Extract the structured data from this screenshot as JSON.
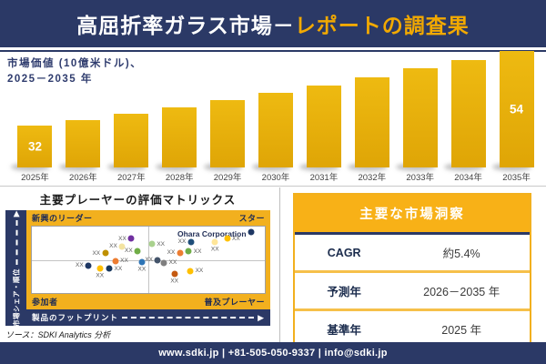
{
  "header": {
    "title_primary": "高屈折率ガラス市場－",
    "title_accent": "レポートの調査果"
  },
  "chart_header": {
    "line1": "市場価値 (10億米ドル)、",
    "line2": "2025－2035 年"
  },
  "chart_data": [
    {
      "type": "bar",
      "title": "市場価値 (10億米ドル)、2025－2035 年",
      "categories": [
        "2025年",
        "2026年",
        "2027年",
        "2028年",
        "2029年",
        "2030年",
        "2031年",
        "2032年",
        "2033年",
        "2034年",
        "2035年"
      ],
      "values": [
        32,
        33.7,
        35.6,
        37.5,
        39.5,
        41.6,
        43.9,
        46.3,
        48.8,
        51.4,
        54
      ],
      "visible_value_labels": [
        {
          "category": "2025年",
          "text": "32"
        },
        {
          "category": "2035年",
          "text": "54"
        }
      ],
      "ylabel": "市場価値 (10億米ドル)",
      "bar_color": "#E8AE0D",
      "grid": false,
      "legend": "none"
    },
    {
      "type": "scatter",
      "title": "主要プレーヤーの評価マトリックス",
      "xlabel": "製品のフットプリント",
      "ylabel": "市場シェア・順位",
      "quadrants": {
        "top_left": "新興のリーダー",
        "top_right": "スター",
        "bottom_left": "参加者",
        "bottom_right": "普及プレーヤー"
      },
      "point_label": "XX",
      "highlighted_company": "Ohara Corporation",
      "points": [
        {
          "x": 42.7,
          "y": 17.9,
          "color": "#7030A0",
          "label_side": "left"
        },
        {
          "x": 38.8,
          "y": 30.0,
          "color": "#F3E3A1",
          "label_side": "left"
        },
        {
          "x": 31.5,
          "y": 40.1,
          "color": "#BF9000",
          "label_side": "left"
        },
        {
          "x": 45.4,
          "y": 36.7,
          "color": "#70AD47",
          "label_side": "left"
        },
        {
          "x": 35.8,
          "y": 51.8,
          "color": "#ED7D31",
          "label_side": "right"
        },
        {
          "x": 47.2,
          "y": 53.2,
          "color": "#2E75B6",
          "label_side": "below"
        },
        {
          "x": 24.3,
          "y": 58.6,
          "color": "#1F3864",
          "label_side": "left"
        },
        {
          "x": 29.2,
          "y": 63.6,
          "color": "#FFC000",
          "label_side": "below"
        },
        {
          "x": 33.2,
          "y": 63.3,
          "color": "#17375E",
          "label_side": "right"
        },
        {
          "x": 94.0,
          "y": 7.8,
          "color": "#1F3864",
          "label_side": "none"
        },
        {
          "x": 83.8,
          "y": 17.9,
          "color": "#FFC000",
          "label_side": "right"
        },
        {
          "x": 78.6,
          "y": 23.9,
          "color": "#FFE699",
          "label_side": "below"
        },
        {
          "x": 68.3,
          "y": 22.9,
          "color": "#1F4E79",
          "label_side": "left"
        },
        {
          "x": 51.5,
          "y": 26.6,
          "color": "#A9D18E",
          "label_side": "right"
        },
        {
          "x": 63.6,
          "y": 39.1,
          "color": "#ED7D31",
          "label_side": "left"
        },
        {
          "x": 67.3,
          "y": 37.4,
          "color": "#70AD47",
          "label_side": "right"
        },
        {
          "x": 54.1,
          "y": 50.2,
          "color": "#44546A",
          "label_side": "left"
        },
        {
          "x": 56.7,
          "y": 54.2,
          "color": "#7F7F7F",
          "label_side": "right"
        },
        {
          "x": 61.2,
          "y": 71.0,
          "color": "#C55A11",
          "label_side": "below"
        },
        {
          "x": 68.0,
          "y": 66.7,
          "color": "#FFC000",
          "label_side": "right"
        }
      ]
    }
  ],
  "insights": {
    "title": "主要な市場洞察",
    "rows": [
      {
        "label": "CAGR",
        "value": "約5.4%"
      },
      {
        "label": "予測年",
        "value": "2026－2035 年"
      },
      {
        "label": "基準年",
        "value": "2025 年"
      }
    ]
  },
  "source": {
    "text": "ソース：SDKI Analytics 分析"
  },
  "footer": {
    "text": "www.sdki.jp | +81-505-050-9337 | info@sdki.jp"
  },
  "colors": {
    "navy": "#2B3966",
    "title_accent_gold": "#F2A900",
    "bar_gold": "#E8AE0D",
    "matrix_frame_gold": "#F2B01E",
    "table_header_gold": "#F8B117",
    "table_border_gold": "#F6C04A"
  }
}
